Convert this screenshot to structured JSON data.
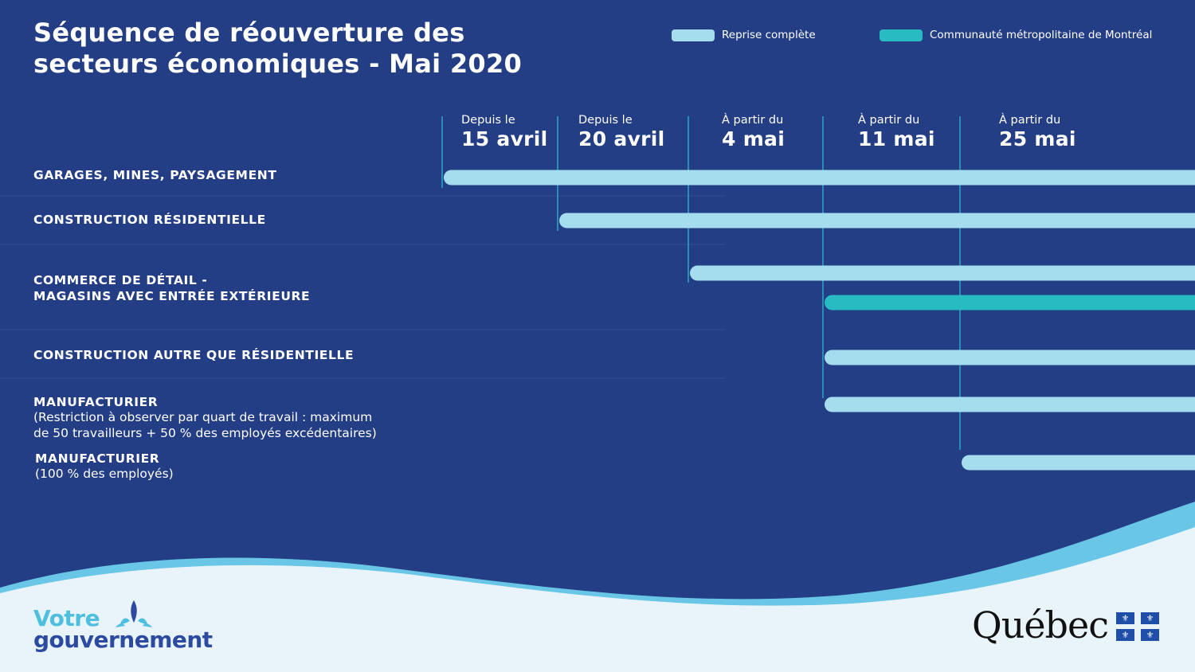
{
  "title": {
    "line1": "Séquence de réouverture des",
    "line2": "secteurs économiques - Mai 2020"
  },
  "colors": {
    "background": "#243e86",
    "full_resumption": "#a6ddee",
    "montreal": "#28bcc2",
    "gridline": "#2aa9c9",
    "divider": "#2f4e97"
  },
  "chart_data": {
    "type": "gantt",
    "legend": {
      "position": "top-right",
      "entries": [
        {
          "key": "full",
          "label": "Reprise complète",
          "color": "#a6ddee"
        },
        {
          "key": "cmm",
          "label": "Communauté métropolitaine de Montréal",
          "color": "#28bcc2"
        }
      ]
    },
    "columns": [
      {
        "prefix": "Depuis le",
        "date": "15 avril"
      },
      {
        "prefix": "Depuis le",
        "date": "20 avril"
      },
      {
        "prefix": "À partir du",
        "date": "4 mai"
      },
      {
        "prefix": "À partir du",
        "date": "11 mai"
      },
      {
        "prefix": "À partir du",
        "date": "25 mai"
      }
    ],
    "rows": [
      {
        "label": "GARAGES, MINES, PAYSAGEMENT",
        "note": "",
        "bars": [
          {
            "start_column": 0,
            "series": "full"
          }
        ]
      },
      {
        "label": "CONSTRUCTION RÉSIDENTIELLE",
        "note": "",
        "bars": [
          {
            "start_column": 1,
            "series": "full"
          }
        ]
      },
      {
        "label": "COMMERCE DE DÉTAIL -",
        "label2": "MAGASINS AVEC ENTRÉE EXTÉRIEURE",
        "note": "",
        "bars": [
          {
            "start_column": 2,
            "series": "full"
          },
          {
            "start_column": 3,
            "series": "cmm"
          }
        ]
      },
      {
        "label": "CONSTRUCTION AUTRE QUE RÉSIDENTIELLE",
        "note": "",
        "bars": [
          {
            "start_column": 3,
            "series": "full"
          }
        ]
      },
      {
        "label": "MANUFACTURIER",
        "note": "(Restriction à observer par quart de travail : maximum",
        "note2": "de 50 travailleurs + 50 % des employés excédentaires)",
        "bars": [
          {
            "start_column": 3,
            "series": "full"
          }
        ]
      },
      {
        "label": "MANUFACTURIER",
        "note": "(100 % des employés)",
        "bars": [
          {
            "start_column": 4,
            "series": "full"
          }
        ]
      }
    ]
  },
  "footer": {
    "votre": "Votre",
    "gouvernement": "gouvernement",
    "quebec": "Québec",
    "fleur": "⚜"
  }
}
